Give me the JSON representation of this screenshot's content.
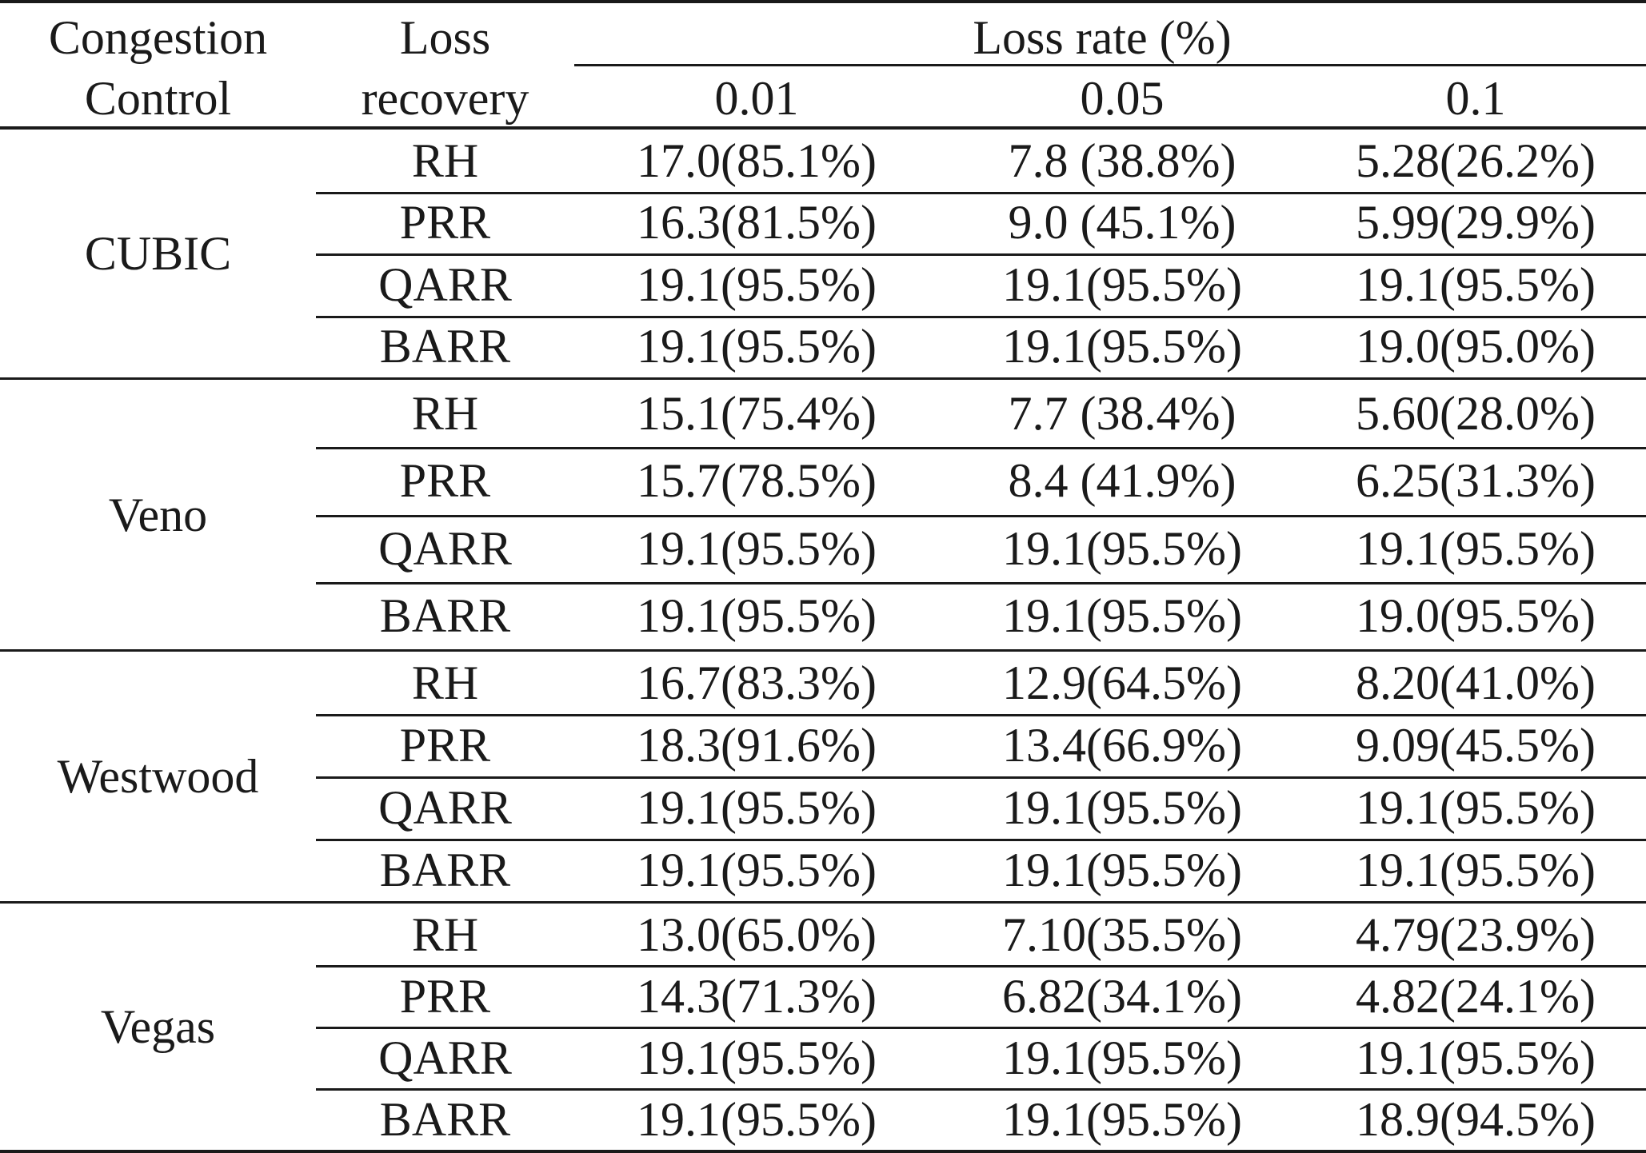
{
  "table": {
    "header": {
      "congestion_line1": "Congestion",
      "congestion_line2": "Control",
      "recovery_line1": "Loss",
      "recovery_line2": "recovery",
      "loss_rate_label": "Loss rate (%)",
      "rates": [
        "0.01",
        "0.05",
        "0.1"
      ]
    },
    "groups": [
      {
        "name": "CUBIC",
        "rows": [
          {
            "method": "RH",
            "values": [
              "17.0(85.1%)",
              "7.8 (38.8%)",
              "5.28(26.2%)"
            ]
          },
          {
            "method": "PRR",
            "values": [
              "16.3(81.5%)",
              "9.0 (45.1%)",
              "5.99(29.9%)"
            ]
          },
          {
            "method": "QARR",
            "values": [
              "19.1(95.5%)",
              "19.1(95.5%)",
              "19.1(95.5%)"
            ]
          },
          {
            "method": "BARR",
            "values": [
              "19.1(95.5%)",
              "19.1(95.5%)",
              "19.0(95.0%)"
            ]
          }
        ]
      },
      {
        "name": "Veno",
        "rows": [
          {
            "method": "RH",
            "values": [
              "15.1(75.4%)",
              "7.7 (38.4%)",
              "5.60(28.0%)"
            ]
          },
          {
            "method": "PRR",
            "values": [
              "15.7(78.5%)",
              "8.4 (41.9%)",
              "6.25(31.3%)"
            ]
          },
          {
            "method": "QARR",
            "values": [
              "19.1(95.5%)",
              "19.1(95.5%)",
              "19.1(95.5%)"
            ]
          },
          {
            "method": "BARR",
            "values": [
              "19.1(95.5%)",
              "19.1(95.5%)",
              "19.0(95.5%)"
            ]
          }
        ]
      },
      {
        "name": "Westwood",
        "rows": [
          {
            "method": "RH",
            "values": [
              "16.7(83.3%)",
              "12.9(64.5%)",
              "8.20(41.0%)"
            ]
          },
          {
            "method": "PRR",
            "values": [
              "18.3(91.6%)",
              "13.4(66.9%)",
              "9.09(45.5%)"
            ]
          },
          {
            "method": "QARR",
            "values": [
              "19.1(95.5%)",
              "19.1(95.5%)",
              "19.1(95.5%)"
            ]
          },
          {
            "method": "BARR",
            "values": [
              "19.1(95.5%)",
              "19.1(95.5%)",
              "19.1(95.5%)"
            ]
          }
        ]
      },
      {
        "name": "Vegas",
        "rows": [
          {
            "method": "RH",
            "values": [
              "13.0(65.0%)",
              "7.10(35.5%)",
              "4.79(23.9%)"
            ]
          },
          {
            "method": "PRR",
            "values": [
              "14.3(71.3%)",
              "6.82(34.1%)",
              "4.82(24.1%)"
            ]
          },
          {
            "method": "QARR",
            "values": [
              "19.1(95.5%)",
              "19.1(95.5%)",
              "19.1(95.5%)"
            ]
          },
          {
            "method": "BARR",
            "values": [
              "19.1(95.5%)",
              "19.1(95.5%)",
              "18.9(94.5%)"
            ]
          }
        ]
      }
    ]
  }
}
